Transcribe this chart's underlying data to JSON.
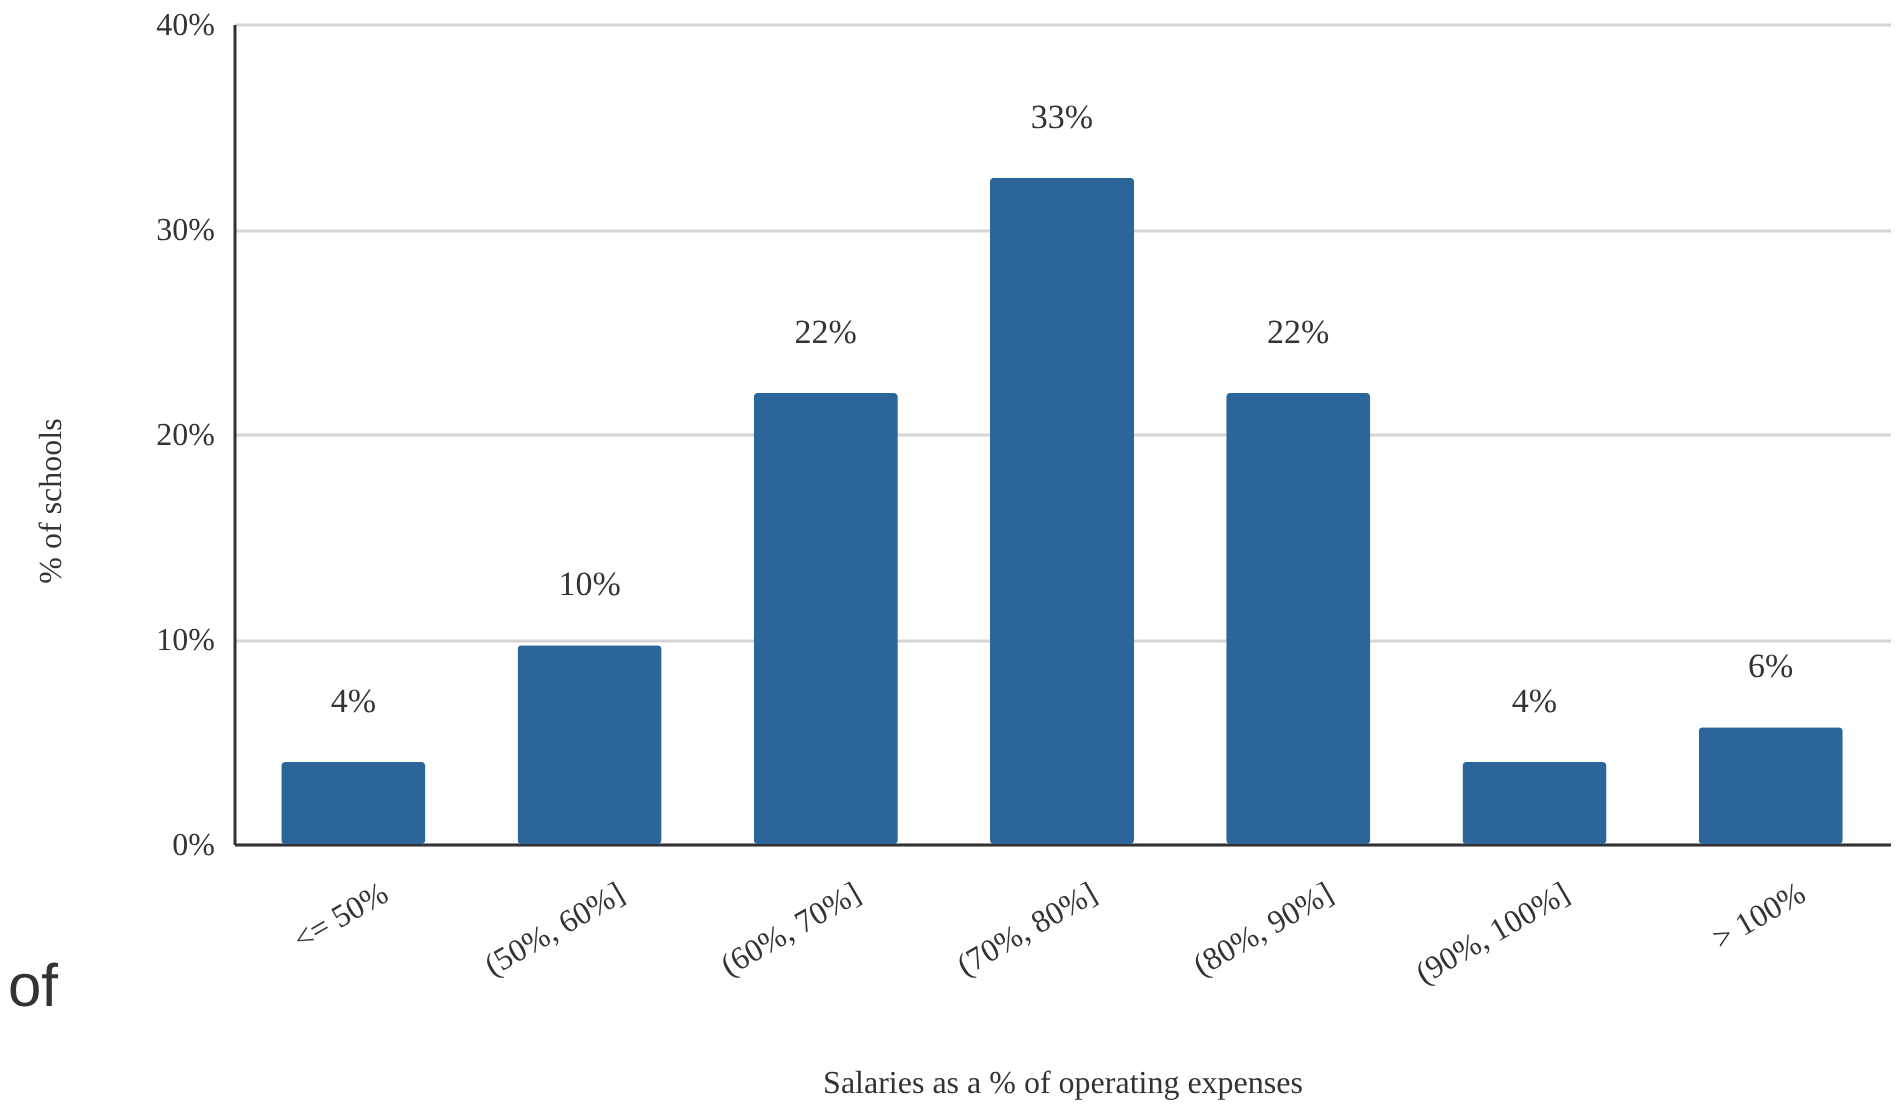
{
  "chart_data": {
    "type": "bar",
    "xlabel": "Salaries as a % of operating expenses",
    "ylabel": "% of schools",
    "categories": [
      "<= 50%",
      "(50%, 60%]",
      "(60%, 70%]",
      "(70%, 80%]",
      "(80%, 90%]",
      "(90%, 100%]",
      "> 100%"
    ],
    "values": [
      4.0,
      9.7,
      22.0,
      32.5,
      22.0,
      4.0,
      5.7
    ],
    "value_labels": [
      "4%",
      "10%",
      "22%",
      "33%",
      "22%",
      "4%",
      "6%"
    ],
    "color": "#2b6599",
    "ylim": [
      0,
      40
    ],
    "yticks": [
      {
        "value": 0,
        "label": "0%"
      },
      {
        "value": 10,
        "label": "10%"
      },
      {
        "value": 20,
        "label": "20%"
      },
      {
        "value": 30,
        "label": "30%"
      },
      {
        "value": 40,
        "label": "40%"
      }
    ],
    "grid": "y",
    "annotations": [
      "of"
    ]
  }
}
